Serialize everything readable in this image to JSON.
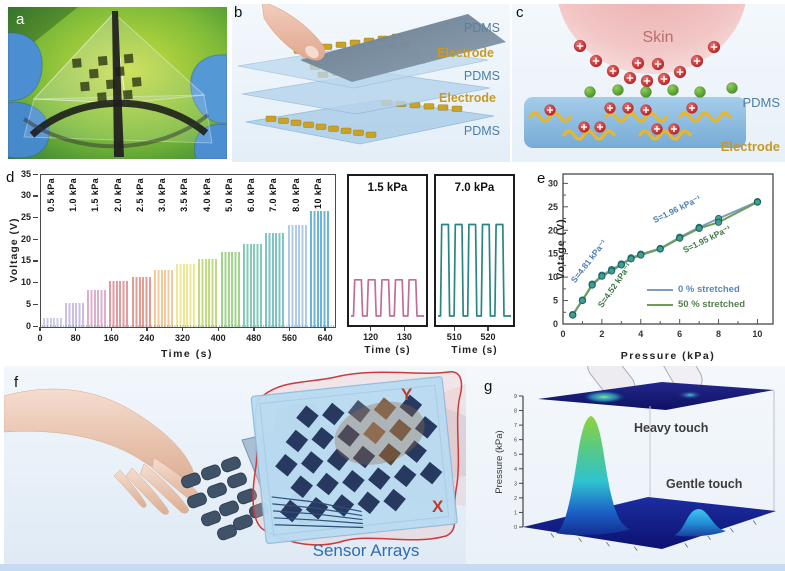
{
  "panels": {
    "a": "a",
    "b": "b",
    "c": "c",
    "d": "d",
    "e": "e",
    "f": "f",
    "g": "g"
  },
  "panel_b": {
    "layers": [
      "PDMS",
      "Electrode",
      "PDMS",
      "Electrode",
      "PDMS"
    ],
    "pdms_color": "#5b7f9e",
    "electrode_color": "#c79a27"
  },
  "panel_c": {
    "skin": "Skin",
    "pdms": "PDMS",
    "electrode": "Electrode"
  },
  "panel_f": {
    "axis_y": "Y",
    "axis_x": "X",
    "caption": "Sensor Arrays",
    "caption_color": "#2d6db5"
  },
  "chart_data": [
    {
      "id": "d-main",
      "type": "line",
      "xlabel": "Time (s)",
      "ylabel": "Voltage (V)",
      "xticks": [
        0,
        80,
        160,
        240,
        320,
        400,
        480,
        560,
        640
      ],
      "yticks": [
        0,
        5,
        10,
        15,
        20,
        25,
        30,
        35
      ],
      "xlim": [
        0,
        660
      ],
      "ylim": [
        0,
        35
      ],
      "step_duration_s": 50,
      "bands": [
        {
          "label": "0.5 kPa",
          "voltage": 2.0,
          "color": "#cfcce9"
        },
        {
          "label": "1.0 kPa",
          "voltage": 5.5,
          "color": "#c8c0e4"
        },
        {
          "label": "1.5 kPa",
          "voltage": 8.5,
          "color": "#dcb0cd"
        },
        {
          "label": "2.0 kPa",
          "voltage": 10.7,
          "color": "#e39a9e"
        },
        {
          "label": "2.5 kPa",
          "voltage": 11.6,
          "color": "#e69b92"
        },
        {
          "label": "3.0 kPa",
          "voltage": 13.2,
          "color": "#f3c99b"
        },
        {
          "label": "3.5 kPa",
          "voltage": 14.5,
          "color": "#f0e892"
        },
        {
          "label": "4.0 kPa",
          "voltage": 15.6,
          "color": "#c2dc81"
        },
        {
          "label": "5.0 kPa",
          "voltage": 17.2,
          "color": "#a2d48e"
        },
        {
          "label": "6.0 kPa",
          "voltage": 19.2,
          "color": "#84ccba"
        },
        {
          "label": "7.0 kPa",
          "voltage": 21.6,
          "color": "#7cc5c5"
        },
        {
          "label": "8.0 kPa",
          "voltage": 23.6,
          "color": "#aecbe9"
        },
        {
          "label": "10 kPa",
          "voltage": 26.6,
          "color": "#6ab4dd"
        }
      ]
    },
    {
      "id": "d-inset-1",
      "type": "line",
      "title": "1.5 kPa",
      "xlabel": "Time (s)",
      "xticks": [
        120,
        130
      ],
      "xlim": [
        113,
        137
      ],
      "pulses": 5,
      "amplitude_V": 8.5,
      "ylim": [
        0,
        35
      ],
      "color": "#c06e95"
    },
    {
      "id": "d-inset-2",
      "type": "line",
      "title": "7.0 kPa",
      "xlabel": "Time (s)",
      "xticks": [
        510,
        520
      ],
      "xlim": [
        504,
        528
      ],
      "pulses": 5,
      "amplitude_V": 21.5,
      "ylim": [
        0,
        35
      ],
      "color": "#2a8583"
    },
    {
      "id": "e",
      "type": "scatter",
      "xlabel": "Pressure (kPa)",
      "ylabel": "Votage (V)",
      "xticks": [
        0,
        2,
        4,
        6,
        8,
        10
      ],
      "yticks": [
        0,
        5,
        10,
        15,
        20,
        25,
        30
      ],
      "xlim": [
        0,
        10.8
      ],
      "ylim": [
        0,
        32
      ],
      "x": [
        0.5,
        1,
        1.5,
        2,
        2.5,
        3,
        3.5,
        4,
        5,
        6,
        7,
        8,
        10
      ],
      "series": [
        {
          "name": "0 % stretched",
          "color": "#7b9cc8",
          "text_color": "#5b87b5",
          "values": [
            2,
            5.1,
            8.5,
            10.4,
            11.6,
            12.8,
            14.1,
            14.9,
            16.1,
            18.5,
            20.6,
            22.5,
            26.1
          ]
        },
        {
          "name": "50 % stretched",
          "color": "#6f9d58",
          "text_color": "#55804d",
          "values": [
            1.9,
            5,
            8.3,
            10.2,
            11.3,
            12.6,
            13.9,
            14.7,
            16,
            18.3,
            20.4,
            21.7,
            26
          ]
        }
      ],
      "marker": {
        "fill": "#3fa093",
        "edge": "#17625e"
      },
      "annotations": [
        {
          "text": "S=4.81 kPa⁻¹",
          "color": "#4a7fb5"
        },
        {
          "text": "S=4.52 kPa⁻¹",
          "color": "#3f7747"
        },
        {
          "text": "S=1.96 kPa⁻¹",
          "color": "#4a7fb5"
        },
        {
          "text": "S=1.95 kPa⁻¹",
          "color": "#3f7747"
        }
      ]
    },
    {
      "id": "g-surface",
      "type": "surface",
      "ylabel": "Pressure (kPa)",
      "yticks": [
        0,
        1,
        2,
        3,
        4,
        5,
        6,
        7,
        8,
        9
      ],
      "peaks": [
        {
          "label": "Heavy touch",
          "pressure_kPa": 8
        },
        {
          "label": "Gentle touch",
          "pressure_kPa": 2
        }
      ]
    }
  ]
}
